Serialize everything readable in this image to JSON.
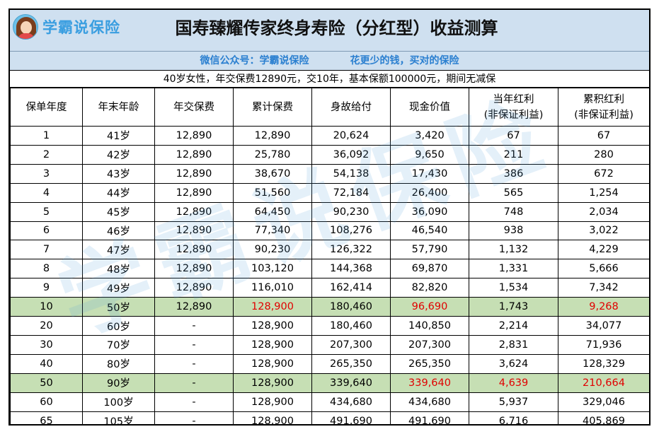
{
  "brand": {
    "name": "学霸说保险",
    "avatar_icon": "girl-avatar-icon"
  },
  "title": "国寿臻耀传家终身寿险（分红型）收益测算",
  "wechat": "微信公众号：学霸说保险",
  "slogan": "花更少的钱，买对的保险",
  "conditions": "40岁女性，年交保费12890元，交10年，基本保额100000元，期间无减保",
  "headers": [
    [
      "保单年度",
      ""
    ],
    [
      "年末年龄",
      ""
    ],
    [
      "年交保费",
      ""
    ],
    [
      "累计保费",
      ""
    ],
    [
      "身故给付",
      ""
    ],
    [
      "现金价值",
      ""
    ],
    [
      "当年红利",
      "(非保证利益)"
    ],
    [
      "累积红利",
      "(非保证利益)"
    ]
  ],
  "rows": [
    {
      "c": [
        "1",
        "41岁",
        "12,890",
        "12,890",
        "20,624",
        "3,420",
        "67",
        "67"
      ]
    },
    {
      "c": [
        "2",
        "42岁",
        "12,890",
        "25,780",
        "36,092",
        "9,650",
        "211",
        "280"
      ]
    },
    {
      "c": [
        "3",
        "43岁",
        "12,890",
        "38,670",
        "54,138",
        "17,430",
        "386",
        "672"
      ]
    },
    {
      "c": [
        "4",
        "44岁",
        "12,890",
        "51,560",
        "72,184",
        "26,400",
        "565",
        "1,254"
      ]
    },
    {
      "c": [
        "5",
        "45岁",
        "12,890",
        "64,450",
        "90,230",
        "36,090",
        "748",
        "2,034"
      ]
    },
    {
      "c": [
        "6",
        "46岁",
        "12,890",
        "77,340",
        "108,276",
        "46,540",
        "938",
        "3,022"
      ]
    },
    {
      "c": [
        "7",
        "47岁",
        "12,890",
        "90,230",
        "126,322",
        "57,790",
        "1,132",
        "4,229"
      ]
    },
    {
      "c": [
        "8",
        "48岁",
        "12,890",
        "103,120",
        "144,368",
        "69,870",
        "1,331",
        "5,666"
      ]
    },
    {
      "c": [
        "9",
        "49岁",
        "12,890",
        "116,010",
        "162,414",
        "82,820",
        "1,534",
        "7,342"
      ]
    },
    {
      "c": [
        "10",
        "50岁",
        "12,890",
        "128,900",
        "180,460",
        "96,690",
        "1,743",
        "9,268"
      ],
      "highlight": true,
      "red": [
        3,
        5,
        7
      ]
    },
    {
      "c": [
        "20",
        "60岁",
        "-",
        "128,900",
        "180,460",
        "140,850",
        "2,214",
        "34,077"
      ]
    },
    {
      "c": [
        "30",
        "70岁",
        "-",
        "128,900",
        "207,300",
        "207,300",
        "2,831",
        "71,936"
      ]
    },
    {
      "c": [
        "40",
        "80岁",
        "-",
        "128,900",
        "265,350",
        "265,350",
        "3,624",
        "128,329"
      ]
    },
    {
      "c": [
        "50",
        "90岁",
        "-",
        "128,900",
        "339,640",
        "339,640",
        "4,639",
        "210,664"
      ],
      "highlight": true,
      "red": [
        5,
        6,
        7
      ]
    },
    {
      "c": [
        "60",
        "100岁",
        "-",
        "128,900",
        "434,680",
        "434,680",
        "5,937",
        "329,046"
      ]
    },
    {
      "c": [
        "65",
        "105岁",
        "-",
        "128,900",
        "491,690",
        "491,690",
        "6,716",
        "405,869"
      ]
    }
  ],
  "colors": {
    "header_bg": "#cfe0f0",
    "highlight_bg": "#c6dfb4",
    "emphasis_red": "#e10000",
    "subline_blue": "#2a7fd0"
  },
  "watermark": "学霸说保险"
}
